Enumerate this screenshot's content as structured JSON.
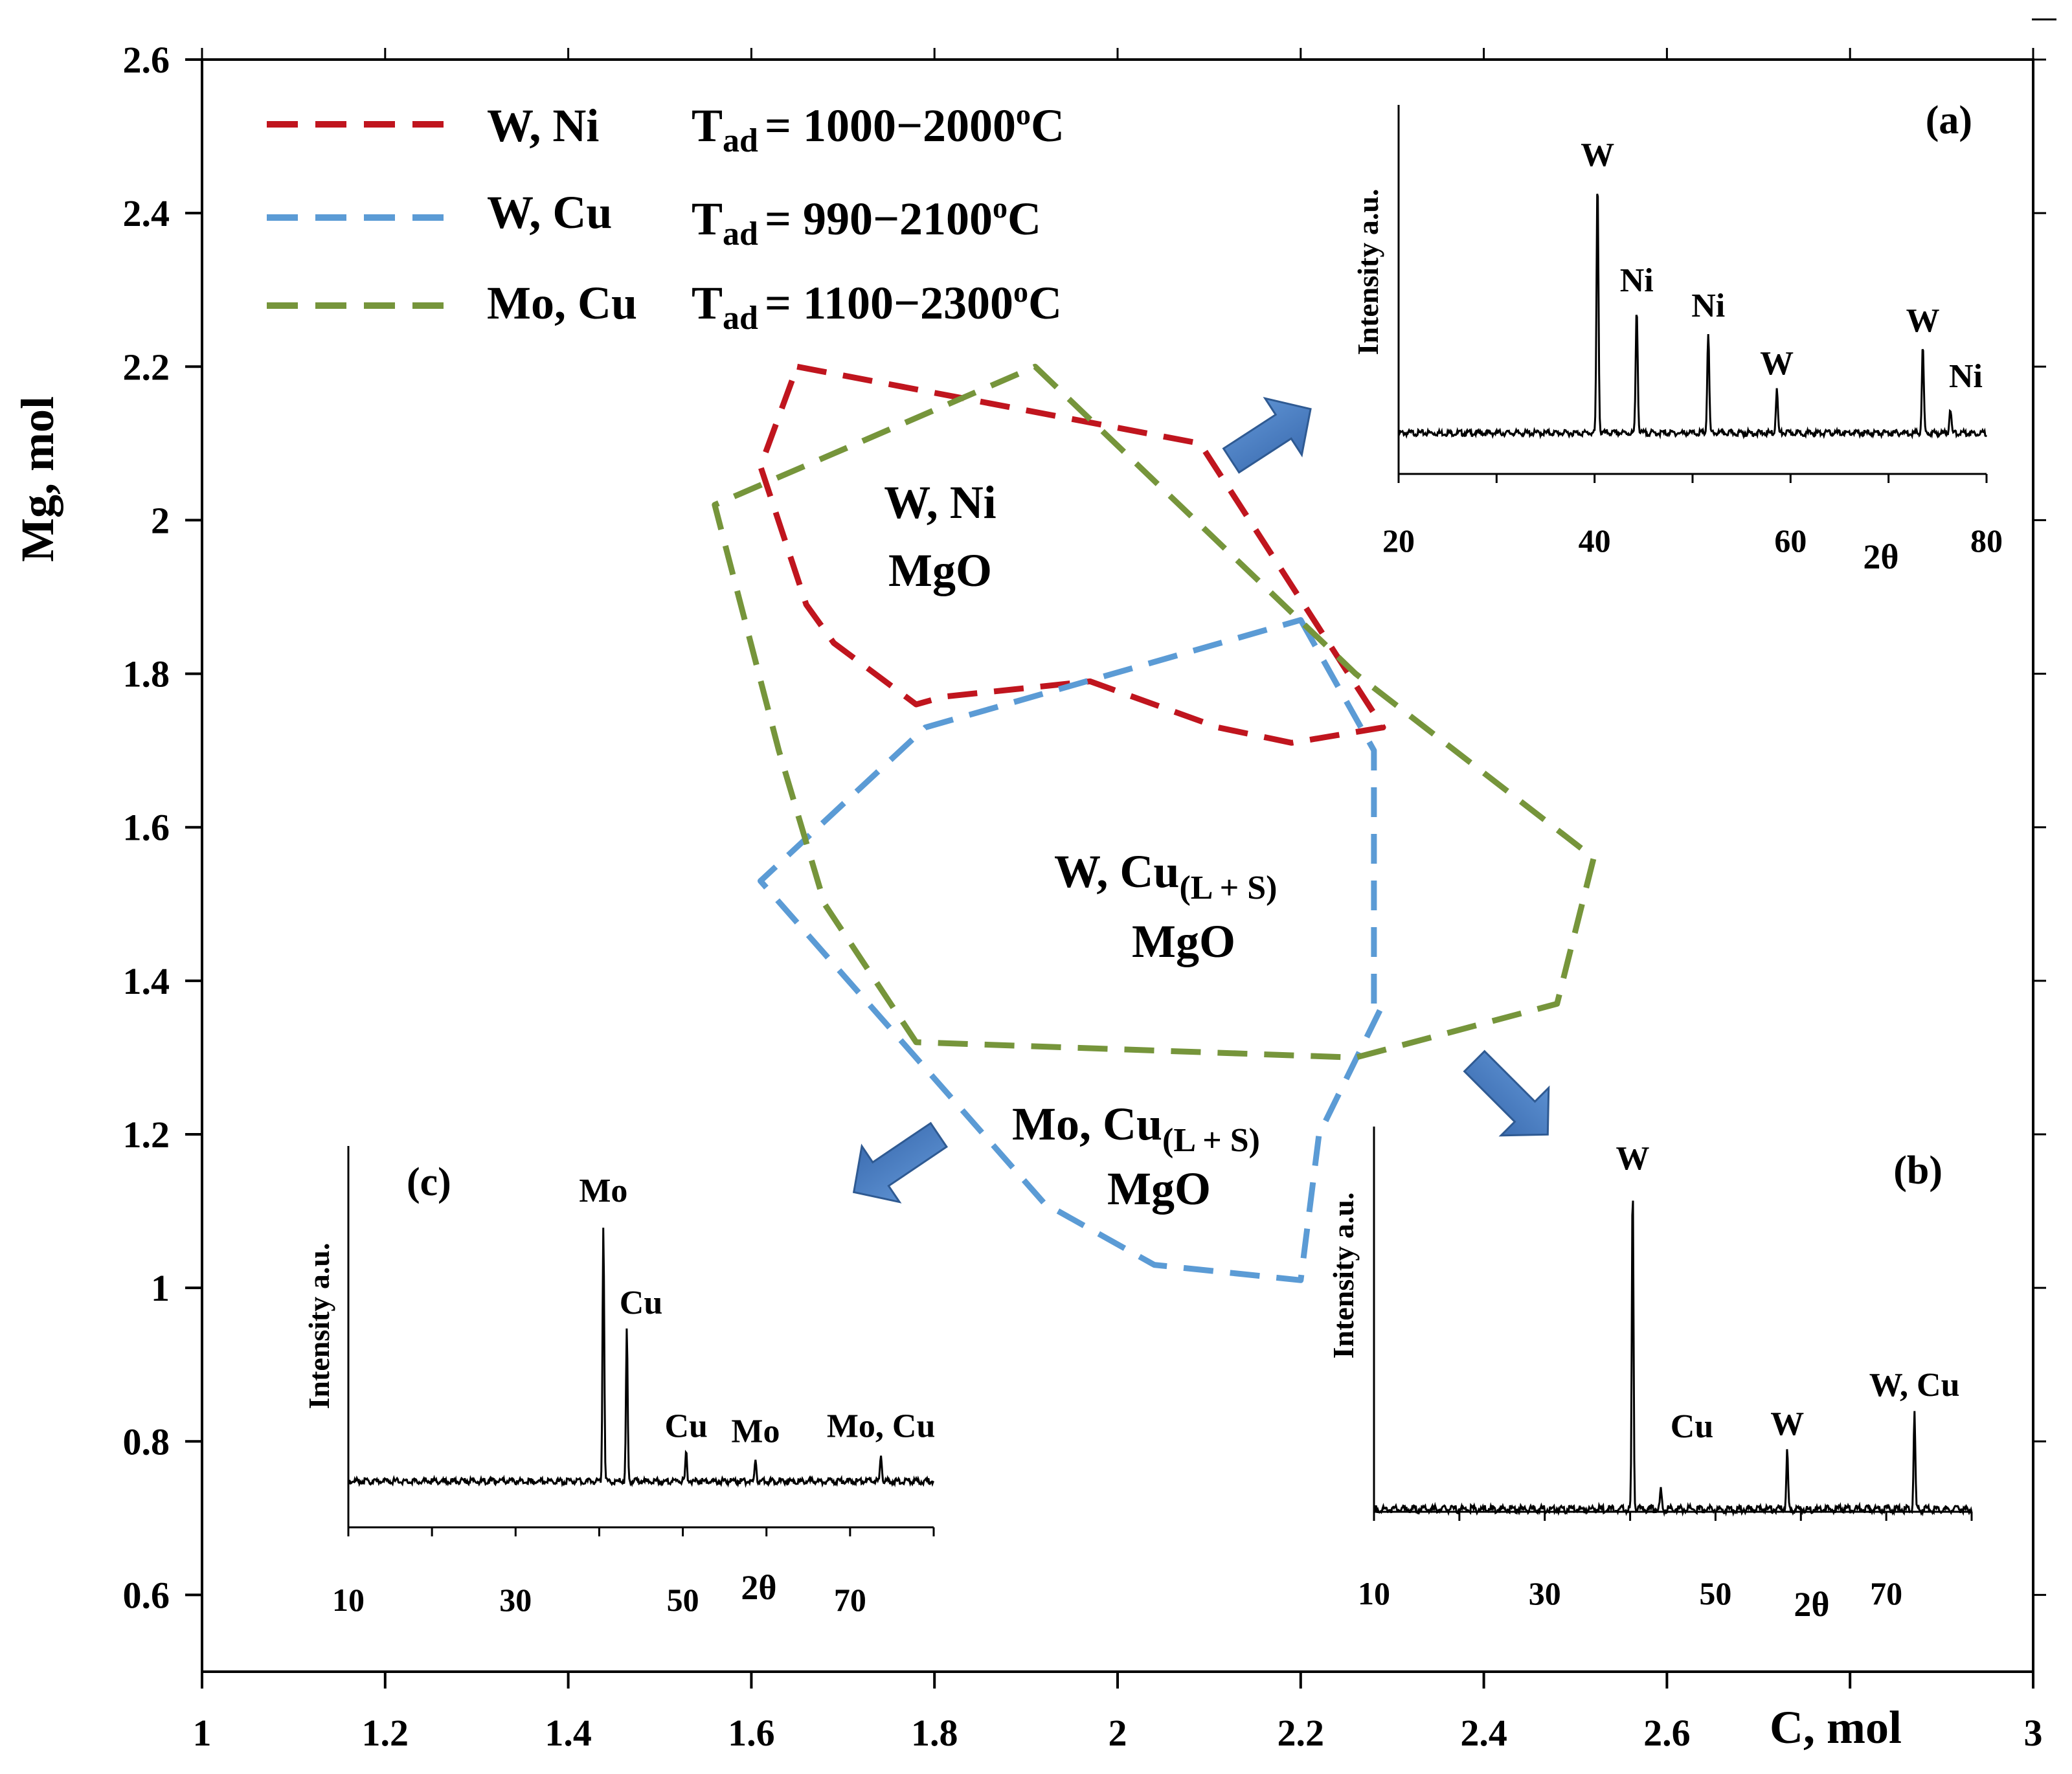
{
  "chart_data": {
    "type": "line",
    "title": "",
    "xlabel": "C, mol",
    "ylabel": "Mg, mol",
    "xlim": [
      1,
      3
    ],
    "ylim": [
      0.5,
      2.6
    ],
    "x_ticks": [
      "1",
      "1.2",
      "1.4",
      "1.6",
      "1.8",
      "2",
      "2.2",
      "2.4",
      "2.6",
      "3"
    ],
    "y_ticks": [
      "0.6",
      "0.8",
      "1",
      "1.2",
      "1.4",
      "1.6",
      "1.8",
      "2",
      "2.2",
      "2.4",
      "2.6"
    ],
    "legend_position": "top-left",
    "legend": [
      {
        "name": "W, Ni",
        "color": "#c0151e",
        "t_main": "T",
        "t_sub": "ad",
        "t_range": "= 1000−2000",
        "t_sup": "o",
        "t_unit": "C"
      },
      {
        "name": "W, Cu",
        "color": "#5b9bd5",
        "t_main": "T",
        "t_sub": "ad",
        "t_range": "= 990−2100",
        "t_sup": "o",
        "t_unit": "C"
      },
      {
        "name": "Mo, Cu",
        "color": "#76953b",
        "t_main": "T",
        "t_sub": "ad",
        "t_range": "= 1100−2300",
        "t_sup": "o",
        "t_unit": "C"
      }
    ],
    "series": [
      {
        "name": "W, Ni",
        "color": "#c0151e",
        "closed": true,
        "x": [
          1.65,
          2.09,
          2.29,
          2.24,
          2.19,
          2.11,
          1.97,
          1.81,
          1.78,
          1.69,
          1.66,
          1.61
        ],
        "y": [
          2.2,
          2.1,
          1.73,
          1.72,
          1.71,
          1.73,
          1.79,
          1.77,
          1.76,
          1.84,
          1.89,
          2.07
        ]
      },
      {
        "name": "W, Cu",
        "color": "#5b9bd5",
        "closed": true,
        "x": [
          2.2,
          2.28,
          2.28,
          2.29,
          2.22,
          2.2,
          2.04,
          1.92,
          1.61,
          1.79
        ],
        "y": [
          1.87,
          1.7,
          1.37,
          1.37,
          1.2,
          1.01,
          1.03,
          1.11,
          1.53,
          1.73
        ]
      },
      {
        "name": "Mo, Cu",
        "color": "#76953b",
        "closed": true,
        "x": [
          1.91,
          2.26,
          2.52,
          2.48,
          2.26,
          1.78,
          1.68,
          1.63,
          1.56
        ],
        "y": [
          2.2,
          1.8,
          1.56,
          1.37,
          1.3,
          1.32,
          1.5,
          1.7,
          2.02
        ]
      }
    ],
    "regions": [
      {
        "lines": [
          "W, Ni",
          "MgO"
        ]
      },
      {
        "main": "W, Cu",
        "sub": "(L + S)",
        "line2": "MgO"
      },
      {
        "main": "Mo, Cu",
        "sub": "(L + S)",
        "line2": "MgO"
      }
    ],
    "insets": [
      {
        "tag": "(a)",
        "type": "line",
        "ylabel": "Intensity a.u.",
        "xlabel": "2θ",
        "xlim": [
          20,
          80
        ],
        "x_ticks": [
          "20",
          "40",
          "60",
          "80"
        ],
        "peaks": [
          {
            "x": 40.3,
            "h": 1.0,
            "label": "W"
          },
          {
            "x": 44.3,
            "h": 0.5,
            "label": "Ni"
          },
          {
            "x": 51.6,
            "h": 0.4,
            "label": "Ni"
          },
          {
            "x": 58.6,
            "h": 0.17,
            "label": "W"
          },
          {
            "x": 73.5,
            "h": 0.34,
            "label": "W"
          },
          {
            "x": 76.3,
            "h": 0.1,
            "label": "Ni"
          }
        ]
      },
      {
        "tag": "(b)",
        "type": "line",
        "ylabel": "Intensity a.u.",
        "xlabel": "2θ",
        "xlim": [
          10,
          80
        ],
        "x_ticks": [
          "10",
          "30",
          "50",
          "70"
        ],
        "peaks": [
          {
            "x": 40.3,
            "h": 1.0,
            "label": "W"
          },
          {
            "x": 43.6,
            "h": 0.06,
            "label": "Cu"
          },
          {
            "x": 58.4,
            "h": 0.18,
            "label": "W"
          },
          {
            "x": 73.3,
            "h": 0.3,
            "label": "W, Cu"
          }
        ]
      },
      {
        "tag": "(c)",
        "type": "line",
        "ylabel": "Intensity a.u.",
        "xlabel": "2θ",
        "xlim": [
          10,
          80
        ],
        "x_ticks": [
          "10",
          "30",
          "50",
          "70"
        ],
        "peaks": [
          {
            "x": 40.5,
            "h": 1.0,
            "label": "Mo"
          },
          {
            "x": 43.3,
            "h": 0.59,
            "label": "Cu"
          },
          {
            "x": 50.4,
            "h": 0.11,
            "label": "Cu"
          },
          {
            "x": 58.7,
            "h": 0.09,
            "label": "Mo"
          },
          {
            "x": 73.7,
            "h": 0.11,
            "label": "Mo, Cu"
          }
        ]
      }
    ]
  }
}
